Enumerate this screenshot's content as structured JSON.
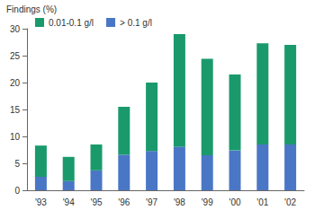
{
  "chart_data": {
    "type": "bar",
    "title": "Findings (%)",
    "categories": [
      "'93",
      "'94",
      "'95",
      "'96",
      "'97",
      "'98",
      "'99",
      "'00",
      "'01",
      "'02"
    ],
    "series": [
      {
        "name": "0.01-0.1 g/l",
        "color": "#1a9a6c",
        "values": [
          5.8,
          4.5,
          4.8,
          8.9,
          12.7,
          20.9,
          17.9,
          14.1,
          18.8,
          18.5
        ]
      },
      {
        "name": "> 0.1 g/l",
        "color": "#4a76c6",
        "values": [
          2.5,
          1.7,
          3.7,
          6.6,
          7.3,
          8.1,
          6.5,
          7.4,
          8.5,
          8.5
        ]
      }
    ],
    "stacked": true,
    "ylim": [
      0,
      30
    ],
    "yticks": [
      0,
      5,
      10,
      15,
      20,
      25,
      30
    ],
    "grid": false,
    "legend": "top-left"
  }
}
